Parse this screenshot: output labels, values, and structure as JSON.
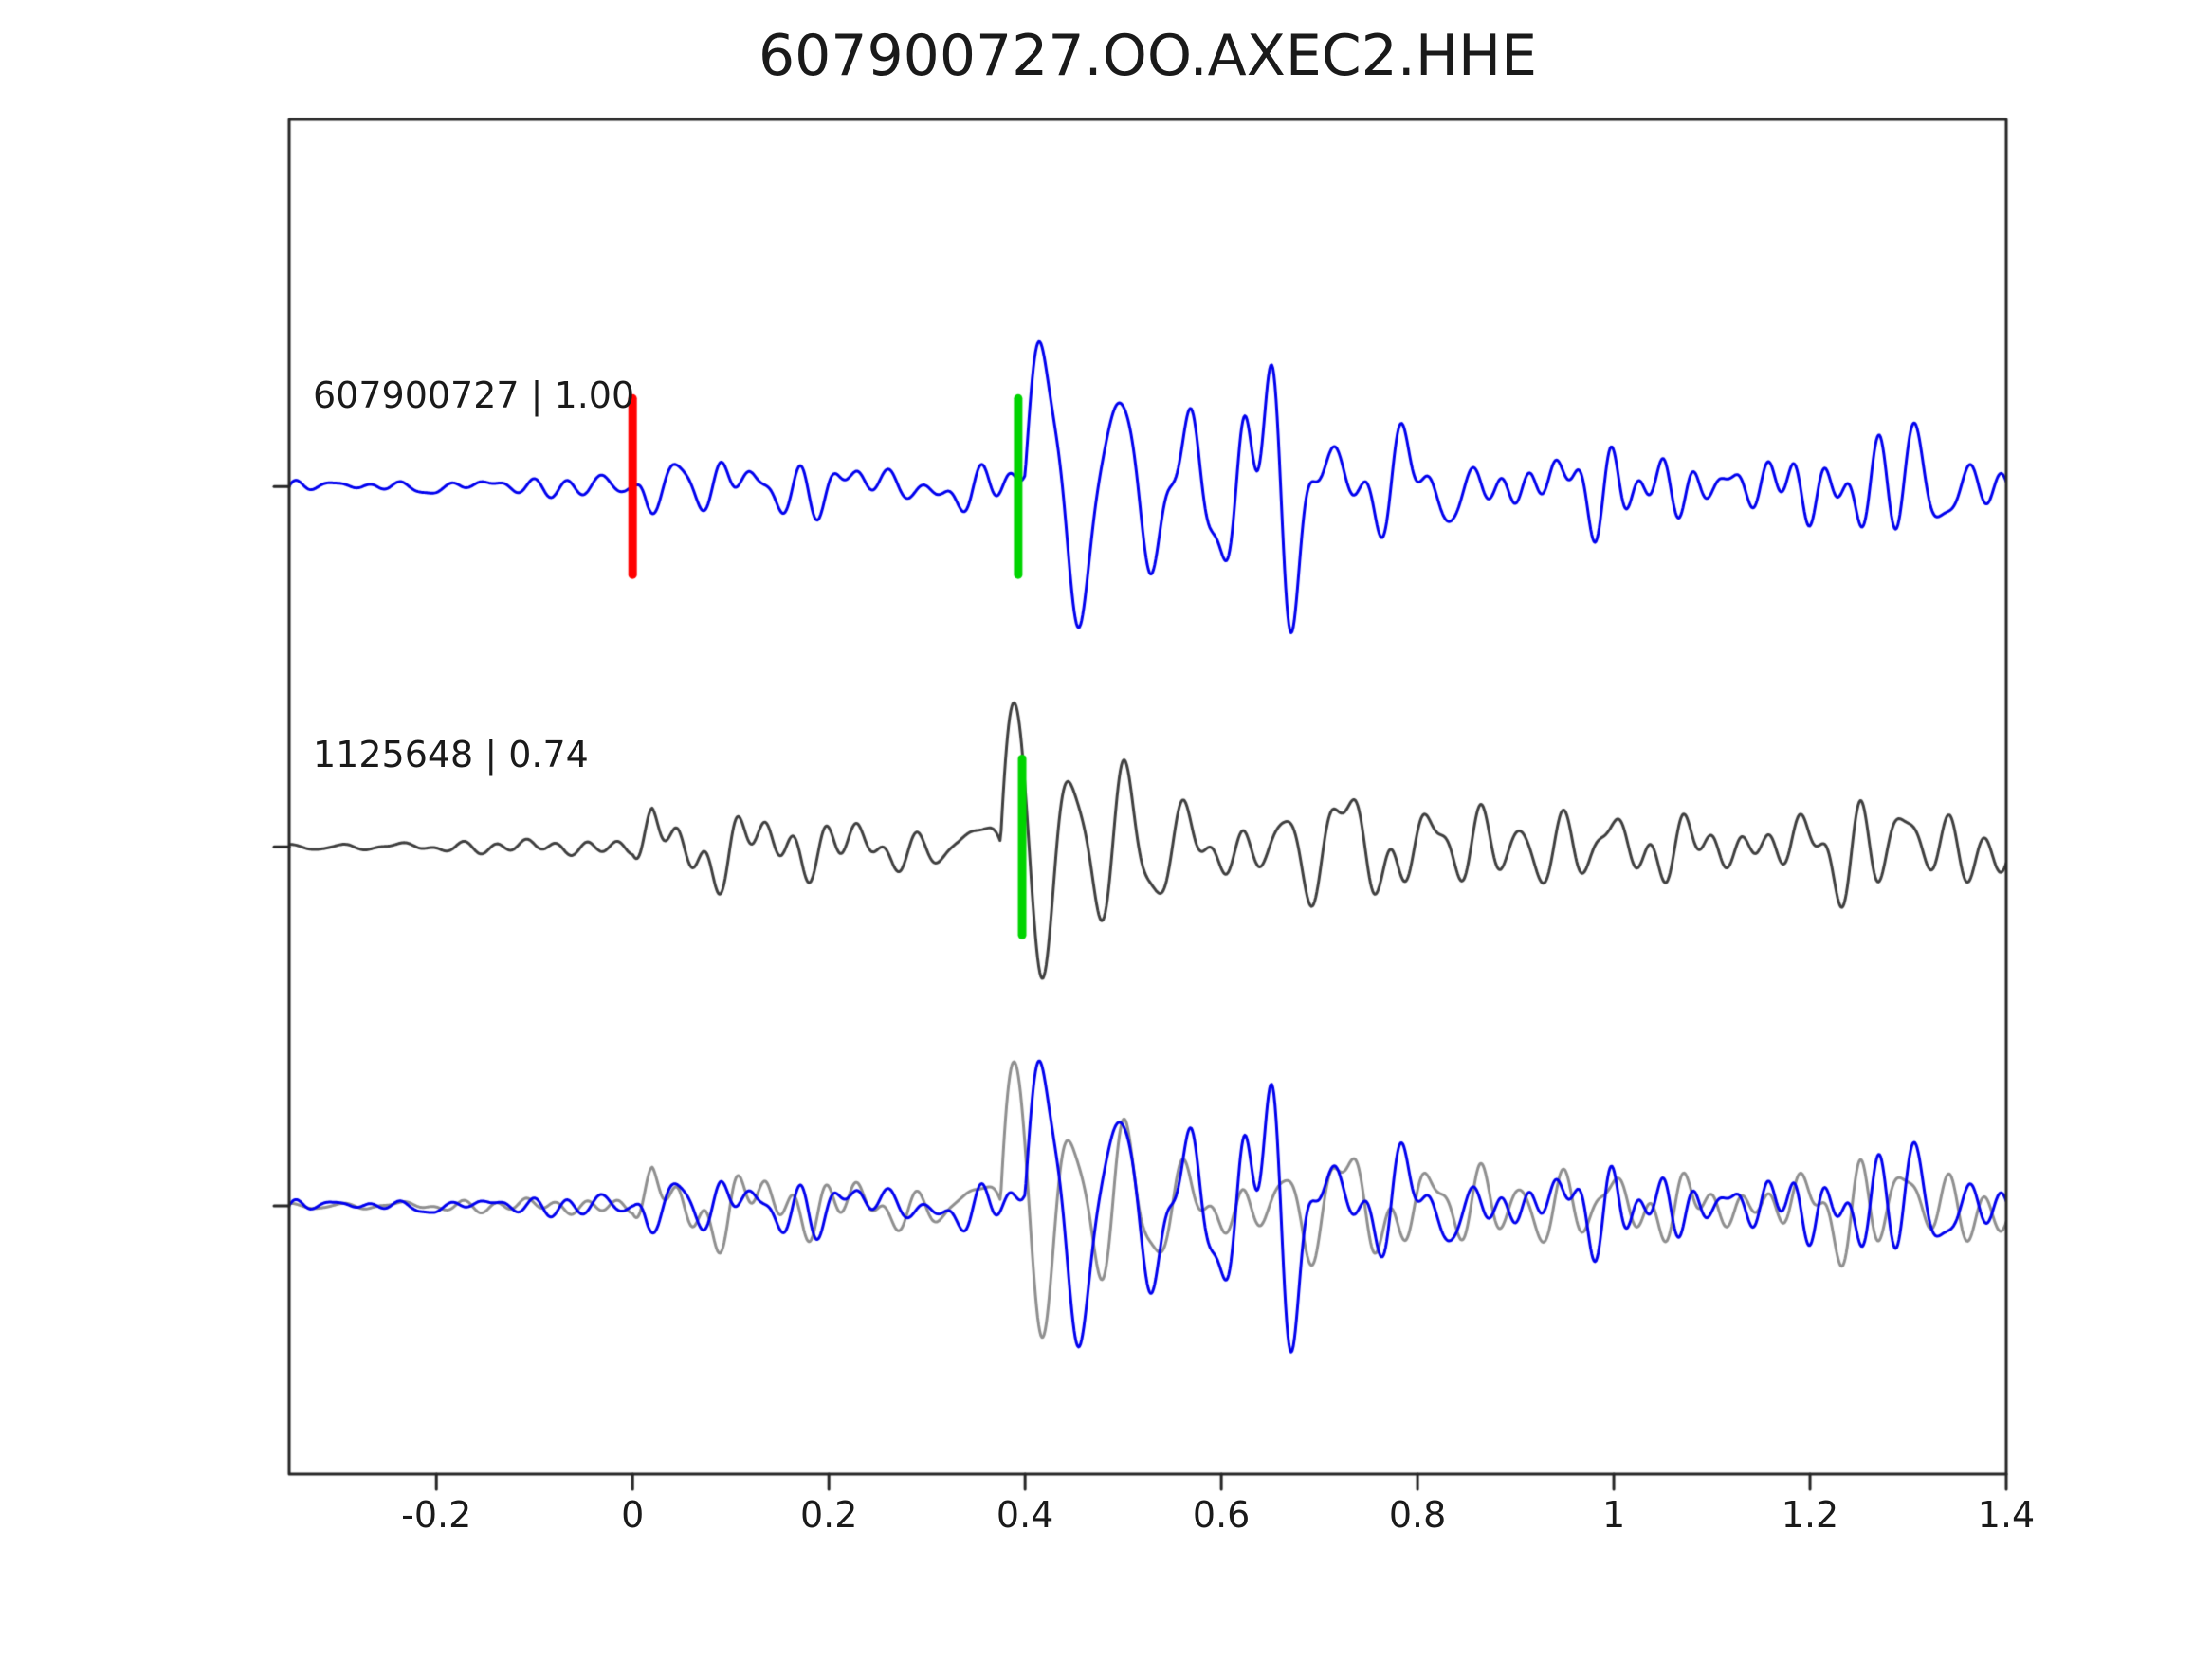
{
  "chart_data": {
    "type": "line",
    "title": "607900727.OO.AXEC2.HHE",
    "xlabel": "",
    "ylabel": "",
    "xlim": [
      -0.35,
      1.4
    ],
    "x_ticks": [
      -0.2,
      0,
      0.2,
      0.4,
      0.6,
      0.8,
      1,
      1.2,
      1.4
    ],
    "x_tick_labels": [
      "-0.2",
      "0",
      "0.2",
      "0.4",
      "0.6",
      "0.8",
      "1",
      "1.2",
      "1.4"
    ],
    "grid": false,
    "legend": "none",
    "rows": 3,
    "row_fracs": [
      0.271,
      0.537,
      0.802
    ],
    "marker_half_height_frac": 0.065,
    "frame_color": "#262626",
    "traces": [
      {
        "id": "607900727",
        "label": "607900727 | 1.00",
        "color": "#0000ee",
        "row": 0,
        "markers": [
          {
            "name": "origin-pick",
            "color": "#ff0000",
            "x": 0.0
          },
          {
            "name": "arrival-pick",
            "color": "#00d400",
            "x": 0.393
          }
        ],
        "synthesis": {
          "seed": 1234,
          "n_components": 45,
          "freq_range": [
            5,
            38
          ],
          "noise_gain": 1.0,
          "envelope": [
            [
              -0.35,
              9
            ],
            [
              0.0,
              9
            ],
            [
              0.015,
              42
            ],
            [
              0.09,
              52
            ],
            [
              0.16,
              34
            ],
            [
              0.25,
              32
            ],
            [
              0.33,
              38
            ],
            [
              0.4,
              48
            ],
            [
              0.5,
              70
            ],
            [
              0.62,
              80
            ],
            [
              0.72,
              62
            ],
            [
              0.82,
              42
            ],
            [
              0.95,
              34
            ],
            [
              1.1,
              40
            ],
            [
              1.25,
              42
            ],
            [
              1.4,
              34
            ]
          ],
          "pulses": [
            {
              "t": 0.4,
              "amp": 150,
              "period": 0.075,
              "decay": 5
            }
          ]
        }
      },
      {
        "id": "1125648",
        "label": "1125648 | 0.74",
        "color": "#3f3f3f",
        "row": 1,
        "markers": [
          {
            "name": "arrival-pick",
            "color": "#00d400",
            "x": 0.397
          }
        ],
        "synthesis": {
          "seed": 987,
          "n_components": 45,
          "freq_range": [
            5,
            34
          ],
          "noise_gain": 1.0,
          "envelope": [
            [
              -0.35,
              5
            ],
            [
              0.0,
              5
            ],
            [
              0.02,
              28
            ],
            [
              0.1,
              33
            ],
            [
              0.2,
              28
            ],
            [
              0.3,
              26
            ],
            [
              0.38,
              30
            ],
            [
              0.46,
              38
            ],
            [
              0.56,
              48
            ],
            [
              0.66,
              55
            ],
            [
              0.76,
              38
            ],
            [
              0.9,
              45
            ],
            [
              1.05,
              38
            ],
            [
              1.2,
              38
            ],
            [
              1.4,
              32
            ]
          ],
          "pulses": [
            {
              "t": 0.375,
              "amp": 205,
              "period": 0.058,
              "decay": 12
            }
          ]
        }
      },
      {
        "id": "overlay",
        "label": "",
        "row": 2,
        "components": [
          {
            "ref": 1,
            "color": "#8f8f8f"
          },
          {
            "ref": 0,
            "color": "#0000ee"
          }
        ],
        "markers": []
      }
    ]
  }
}
